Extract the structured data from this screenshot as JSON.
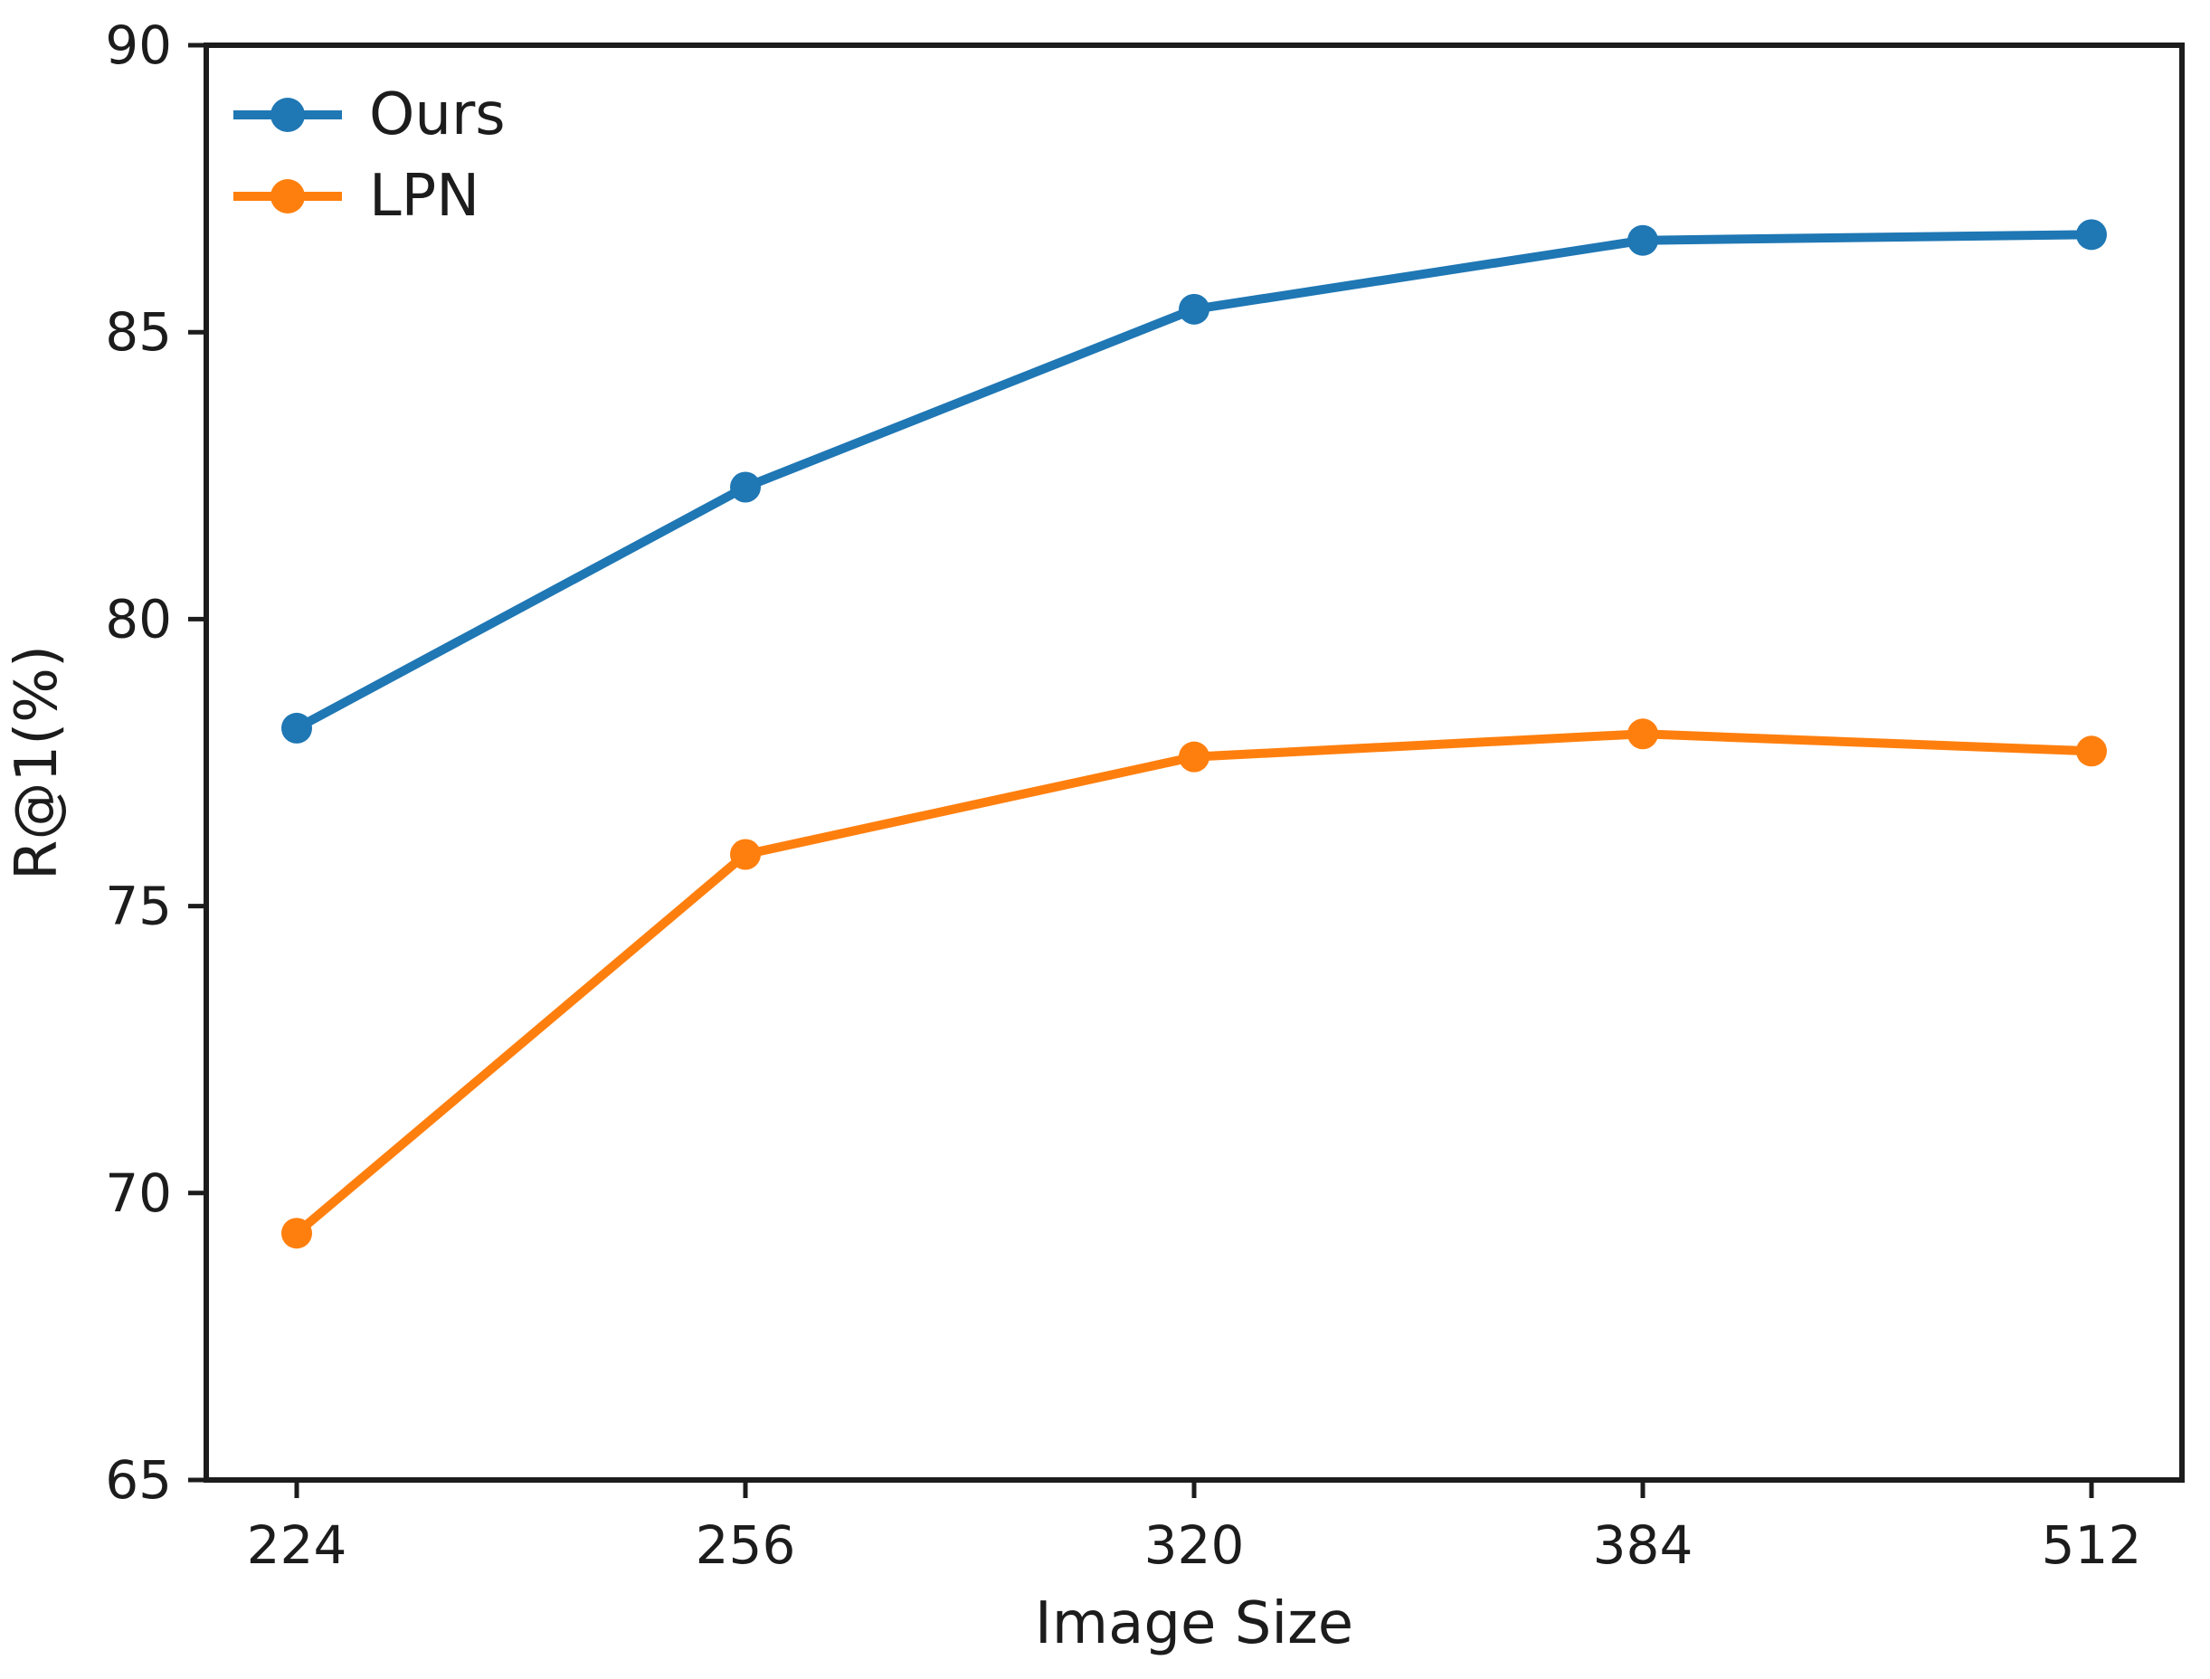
{
  "chart_data": {
    "type": "line",
    "title": "",
    "xlabel": "Image Size",
    "ylabel": "R@1(%)",
    "x_categories": [
      "224",
      "256",
      "320",
      "384",
      "512"
    ],
    "yticks": [
      65,
      70,
      75,
      80,
      85,
      90
    ],
    "ylim": [
      65,
      90
    ],
    "grid": false,
    "legend_position": "upper left",
    "marker": "circle",
    "axis_color": "#1c1c1c",
    "text_color": "#1c1c1c",
    "series": [
      {
        "name": "Ours",
        "color": "#1f77b4",
        "values": [
          78.1,
          82.3,
          85.4,
          86.6,
          86.7
        ]
      },
      {
        "name": "LPN",
        "color": "#ff7f0e",
        "values": [
          69.3,
          75.9,
          77.6,
          78.0,
          77.7
        ]
      }
    ]
  }
}
